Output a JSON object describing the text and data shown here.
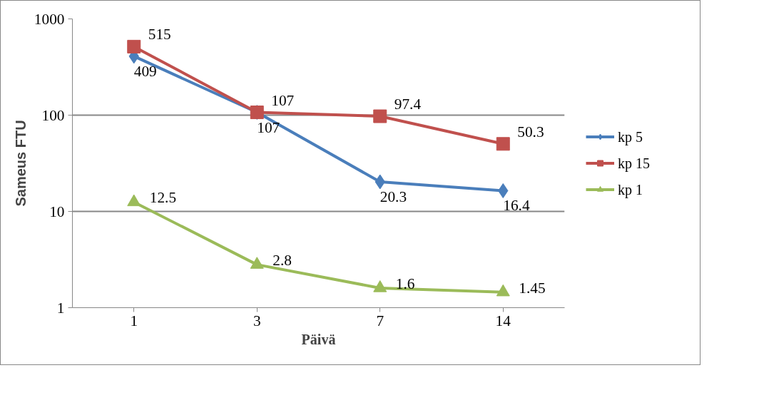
{
  "chart_data": {
    "type": "line",
    "xlabel": "Päivä",
    "ylabel": "Sameus FTU",
    "categories": [
      "1",
      "3",
      "7",
      "14"
    ],
    "series": [
      {
        "name": "kp 5",
        "color": "#4a7ebb",
        "marker": "diamond",
        "values": [
          409,
          107,
          20.3,
          16.4
        ]
      },
      {
        "name": "kp 15",
        "color": "#c0504d",
        "marker": "square",
        "values": [
          515,
          107,
          97.4,
          50.3
        ]
      },
      {
        "name": "kp 1",
        "color": "#9bbb59",
        "marker": "triangle",
        "values": [
          12.5,
          2.8,
          1.6,
          1.45
        ]
      }
    ],
    "log": "y",
    "ylim": [
      1,
      1000
    ],
    "yticks": [
      1,
      10,
      100,
      1000
    ],
    "grid": "y",
    "legend": "right",
    "data_labels": true
  }
}
